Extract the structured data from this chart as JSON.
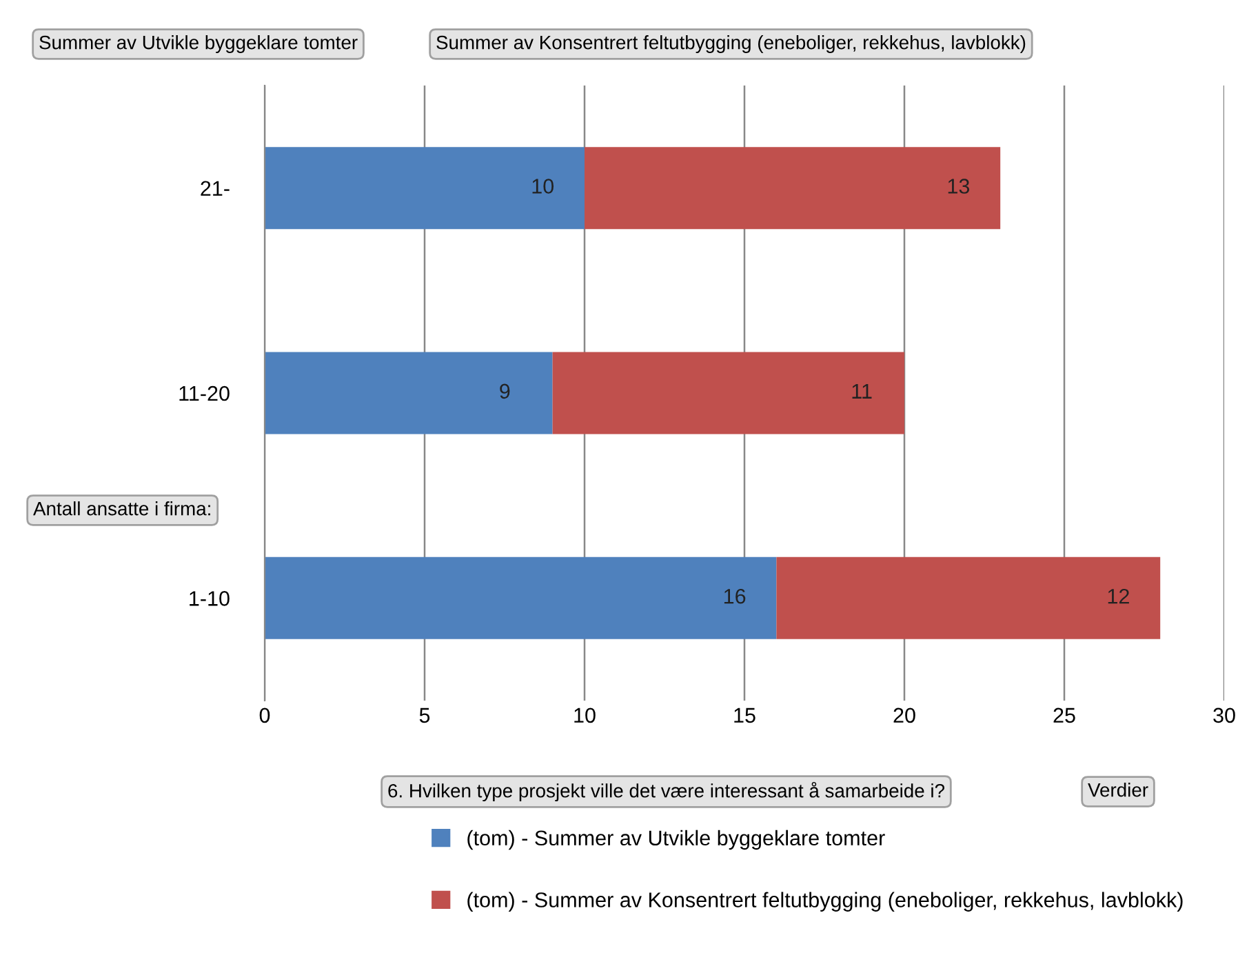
{
  "chart_data": {
    "type": "bar",
    "orientation": "horizontal",
    "stacked": true,
    "categories": [
      "21-",
      "11-20",
      "1-10"
    ],
    "series": [
      {
        "name": "(tom) - Summer av Utvikle byggeklare tomter",
        "color": "#4f81bd",
        "values": [
          10,
          9,
          16
        ]
      },
      {
        "name": "(tom) - Summer av Konsentrert feltutbygging (eneboliger, rekkehus, lavblokk)",
        "color": "#c0504d",
        "values": [
          13,
          11,
          12
        ]
      }
    ],
    "xlim": [
      0,
      30
    ],
    "xticks": [
      0,
      5,
      10,
      15,
      20,
      25,
      30
    ],
    "grid": "x",
    "legend": "bottom",
    "data_labels": true,
    "annotations": [
      "Summer av Utvikle byggeklare tomter",
      "Summer av Konsentrert feltutbygging (eneboliger, rekkehus, lavblokk)",
      "Antall ansatte i firma:",
      "6. Hvilken type prosjekt ville det være interessant å samarbeide i?",
      "Verdier"
    ]
  }
}
